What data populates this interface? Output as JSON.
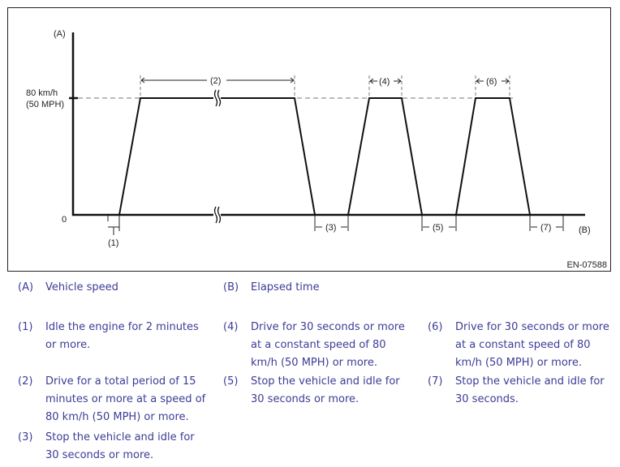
{
  "figure": {
    "id": "EN-07588",
    "y_axis_label": "(A)",
    "x_axis_label": "(B)",
    "speed_label_line1": "80 km/h",
    "speed_label_line2": "(50 MPH)",
    "zero_label": "0",
    "intervals": [
      "(1)",
      "(2)",
      "(3)",
      "(4)",
      "(5)",
      "(6)",
      "(7)"
    ]
  },
  "legend": [
    {
      "key": "(A)",
      "lines": [
        "Vehicle speed"
      ]
    },
    {
      "key": "(B)",
      "lines": [
        "Elapsed time"
      ]
    },
    {
      "key": "(1)",
      "lines": [
        "Idle the engine for 2 minutes",
        "or more."
      ]
    },
    {
      "key": "(2)",
      "lines": [
        "Drive for a total period of 15",
        "minutes or more at a speed of",
        "80 km/h (50 MPH) or more."
      ]
    },
    {
      "key": "(3)",
      "lines": [
        "Stop the vehicle and idle for",
        "30 seconds or more."
      ]
    },
    {
      "key": "(4)",
      "lines": [
        "Drive for 30 seconds or more",
        "at a constant speed of 80",
        "km/h (50 MPH) or more."
      ]
    },
    {
      "key": "(5)",
      "lines": [
        "Stop the vehicle and idle for",
        "30 seconds or more."
      ]
    },
    {
      "key": "(6)",
      "lines": [
        "Drive for 30 seconds or more",
        "at a constant speed of 80",
        "km/h (50 MPH) or more."
      ]
    },
    {
      "key": "(7)",
      "lines": [
        "Stop the vehicle and idle for",
        "30 seconds."
      ]
    }
  ],
  "colors": {
    "legend_text": "#3c3c96",
    "line": "#111111",
    "dashed": "#777777"
  }
}
